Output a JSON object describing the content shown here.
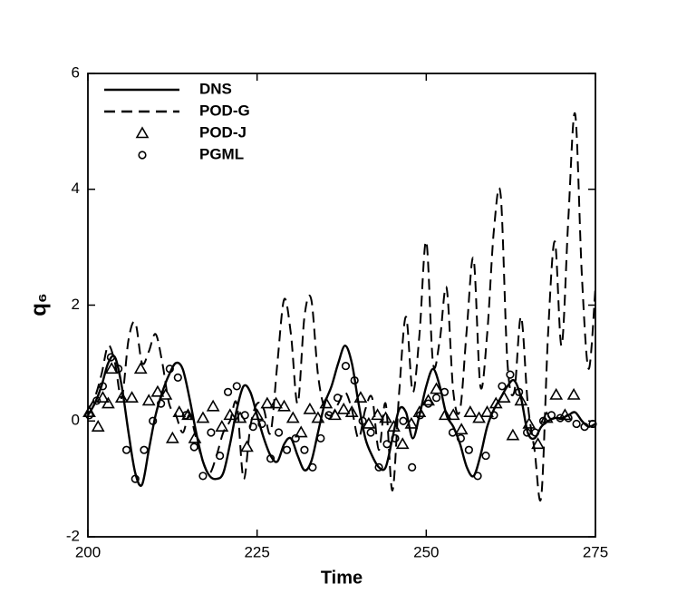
{
  "chart_data": {
    "type": "line",
    "xlabel": "Time",
    "ylabel": "q₆",
    "xlim": [
      200,
      275
    ],
    "xticks": [
      200,
      225,
      250,
      275
    ],
    "ylim": [
      -2,
      6
    ],
    "yticks": [
      -2,
      0,
      2,
      4,
      6
    ],
    "legend": "upper left",
    "series": [
      {
        "name": "DNS",
        "color": "#000000",
        "style": "solid",
        "x": [
          200,
          201,
          202,
          203,
          204,
          205,
          206,
          207,
          208,
          209,
          210,
          211,
          212,
          213,
          214,
          215,
          216,
          217,
          218,
          219,
          220,
          221,
          222,
          223,
          224,
          225,
          226,
          227,
          228,
          229,
          230,
          231,
          232,
          233,
          234,
          235,
          236,
          237,
          238,
          239,
          240,
          241,
          242,
          243,
          244,
          245,
          246,
          247,
          248,
          249,
          250,
          251,
          252,
          253,
          254,
          255,
          256,
          257,
          258,
          259,
          260,
          261,
          262,
          263,
          264,
          265,
          266,
          267,
          268,
          269,
          270,
          271,
          272,
          273,
          274,
          275
        ],
        "values": [
          0.1,
          0.3,
          0.6,
          1.0,
          1.1,
          0.6,
          -0.2,
          -0.9,
          -1.1,
          -0.5,
          0.1,
          0.5,
          0.8,
          1.0,
          0.9,
          0.4,
          -0.2,
          -0.7,
          -0.95,
          -1.0,
          -0.9,
          -0.4,
          0.2,
          0.6,
          0.5,
          0.1,
          -0.3,
          -0.6,
          -0.7,
          -0.4,
          -0.3,
          -0.6,
          -0.85,
          -0.7,
          -0.2,
          0.3,
          0.6,
          1.0,
          1.3,
          1.0,
          0.3,
          -0.3,
          -0.6,
          -0.8,
          -0.8,
          -0.3,
          0.2,
          0.15,
          -0.3,
          0.1,
          0.6,
          0.9,
          0.6,
          0.1,
          -0.1,
          -0.4,
          -0.8,
          -0.95,
          -0.6,
          -0.1,
          0.2,
          0.4,
          0.6,
          0.7,
          0.4,
          -0.2,
          -0.3,
          -0.1,
          0.0,
          0.05,
          0.05,
          0.1,
          0.15,
          0.0,
          -0.1,
          -0.05
        ]
      },
      {
        "name": "POD-G",
        "color": "#000000",
        "style": "dashed",
        "x": [
          200,
          201,
          202,
          203,
          204,
          205,
          206,
          207,
          208,
          209,
          210,
          211,
          212,
          213,
          214,
          215,
          216,
          217,
          218,
          219,
          220,
          221,
          222,
          223,
          224,
          225,
          226,
          227,
          228,
          229,
          230,
          231,
          232,
          233,
          234,
          235,
          236,
          237,
          238,
          239,
          240,
          241,
          242,
          243,
          244,
          245,
          246,
          247,
          248,
          249,
          250,
          251,
          252,
          253,
          254,
          255,
          256,
          257,
          258,
          259,
          260,
          261,
          262,
          263,
          264,
          265,
          266,
          267,
          268,
          269,
          270,
          271,
          272,
          273,
          274,
          275
        ],
        "values": [
          0.2,
          0.4,
          0.8,
          1.3,
          1.0,
          0.4,
          1.4,
          1.7,
          1.0,
          1.2,
          1.5,
          1.0,
          0.3,
          0.1,
          -0.2,
          0.1,
          -0.3,
          -0.7,
          -0.9,
          -0.6,
          -0.2,
          0.0,
          0.3,
          -1.0,
          -0.1,
          0.3,
          0.2,
          -0.2,
          1.0,
          2.1,
          1.5,
          0.3,
          1.8,
          2.1,
          0.8,
          0.2,
          0.1,
          0.3,
          0.5,
          0.2,
          -0.3,
          0.2,
          0.4,
          -0.5,
          0.3,
          -1.2,
          0.5,
          1.8,
          0.5,
          1.5,
          3.1,
          1.0,
          1.4,
          2.3,
          0.5,
          0.2,
          1.6,
          2.8,
          0.6,
          1.5,
          3.3,
          3.9,
          1.0,
          0.5,
          1.8,
          0.3,
          -0.5,
          -1.3,
          1.5,
          3.1,
          1.3,
          3.5,
          5.3,
          2.5,
          0.9,
          2.3
        ]
      },
      {
        "name": "POD-J",
        "color": "#000000",
        "marker": "triangle",
        "x": [
          200.2,
          201.5,
          202.2,
          203,
          203.5,
          205,
          206.5,
          207.8,
          209,
          210.3,
          211.5,
          212.5,
          213.5,
          214.8,
          215.8,
          217,
          218.5,
          219.8,
          221,
          222.5,
          223.5,
          225,
          226.5,
          227.8,
          229,
          230.3,
          231.5,
          232.8,
          234,
          235.2,
          236.5,
          237.8,
          239,
          240.3,
          241.5,
          242.8,
          244,
          245.2,
          246.5,
          247.8,
          249,
          250.3,
          251.5,
          252.8,
          254,
          255.2,
          256.5,
          257.8,
          259,
          260.3,
          261.5,
          262.8,
          264,
          265.2,
          266.5,
          267.8,
          269.2,
          270.5,
          271.8
        ],
        "values": [
          0.15,
          -0.1,
          0.4,
          0.3,
          0.9,
          0.4,
          0.4,
          0.9,
          0.35,
          0.5,
          0.45,
          -0.3,
          0.15,
          0.1,
          -0.3,
          0.05,
          0.25,
          -0.1,
          0.1,
          0.05,
          -0.45,
          0.1,
          0.3,
          0.3,
          0.25,
          0.05,
          -0.2,
          0.2,
          0.05,
          0.3,
          0.1,
          0.2,
          0.15,
          0.4,
          -0.05,
          0.1,
          0.05,
          -0.1,
          -0.4,
          -0.05,
          0.15,
          0.35,
          0.55,
          0.1,
          0.1,
          -0.15,
          0.15,
          0.05,
          0.15,
          0.3,
          0.4,
          -0.25,
          0.35,
          -0.05,
          -0.4,
          0.05,
          0.45,
          0.1,
          0.45
        ]
      },
      {
        "name": "PGML",
        "color": "#000000",
        "marker": "circle",
        "x": [
          200.2,
          201.3,
          202.2,
          203.4,
          204.5,
          205.7,
          207,
          208.3,
          209.6,
          210.8,
          212.1,
          213.3,
          214.5,
          215.7,
          217,
          218.2,
          219.5,
          220.7,
          222,
          223.2,
          224.4,
          225.7,
          227,
          228.2,
          229.4,
          230.7,
          232,
          233.2,
          234.4,
          235.6,
          236.9,
          238.1,
          239.4,
          240.6,
          241.8,
          243,
          244.2,
          245.4,
          246.6,
          247.9,
          249.1,
          250.3,
          251.5,
          252.7,
          253.9,
          255.1,
          256.3,
          257.6,
          258.8,
          260,
          261.2,
          262.4,
          263.7,
          264.9,
          266.1,
          267.3,
          268.5,
          269.8,
          271,
          272.2,
          273.4,
          274.6
        ],
        "values": [
          0.1,
          0.35,
          0.6,
          1.1,
          0.9,
          -0.5,
          -1.0,
          -0.5,
          0.0,
          0.3,
          0.9,
          0.75,
          0.1,
          -0.45,
          -0.95,
          -0.2,
          -0.6,
          0.5,
          0.6,
          0.1,
          -0.1,
          -0.05,
          -0.65,
          -0.2,
          -0.5,
          -0.3,
          -0.5,
          -0.8,
          -0.3,
          0.1,
          0.4,
          0.95,
          0.7,
          0.0,
          -0.2,
          -0.8,
          -0.4,
          -0.3,
          0.0,
          -0.8,
          0.1,
          0.3,
          0.4,
          0.5,
          -0.2,
          -0.3,
          -0.5,
          -0.95,
          -0.6,
          0.1,
          0.6,
          0.8,
          0.5,
          -0.2,
          -0.2,
          0.0,
          0.1,
          0.05,
          0.05,
          -0.05,
          -0.1,
          -0.05
        ]
      }
    ]
  }
}
